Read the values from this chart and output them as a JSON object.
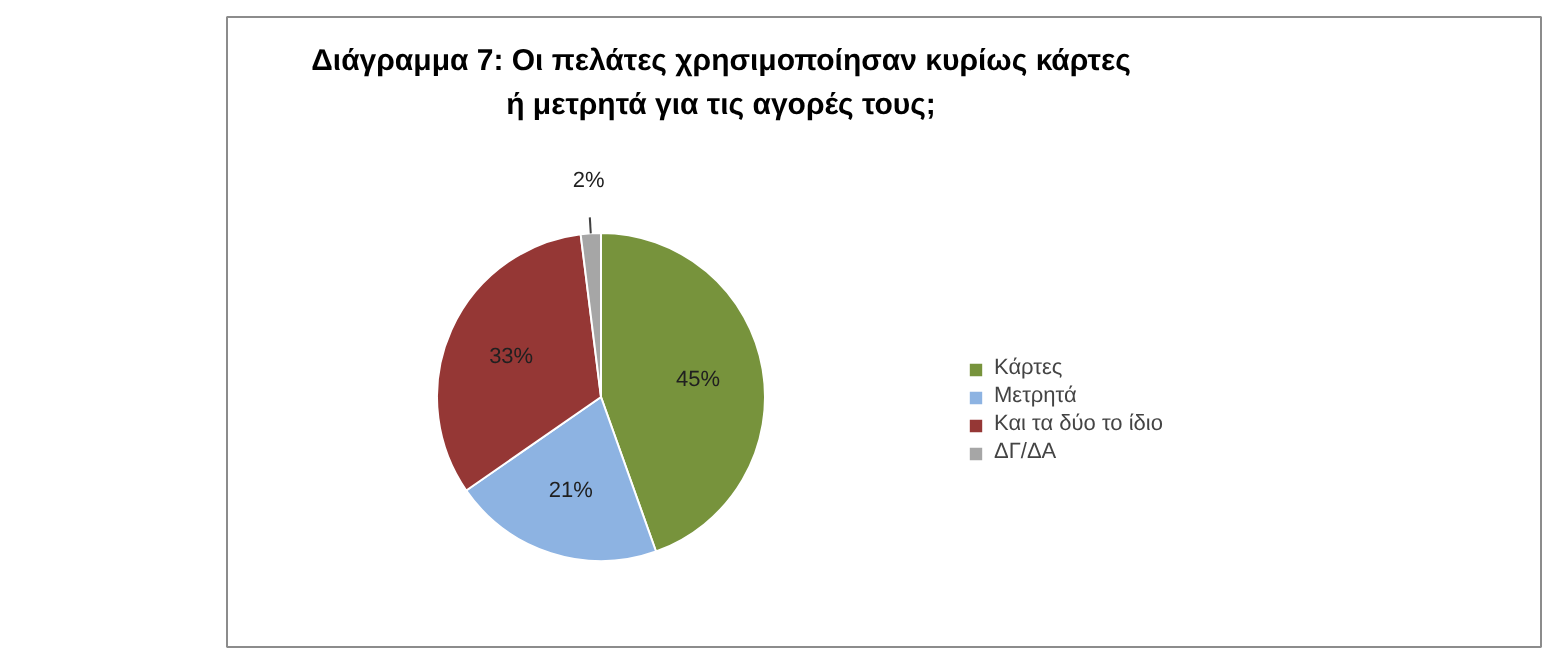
{
  "chart_data": {
    "type": "pie",
    "title": "Διάγραμμα 7: Οι πελάτες χρησιμοποίησαν κυρίως κάρτες ή μετρητά για τις αγορές τους;",
    "categories": [
      "Κάρτες",
      "Μετρητά",
      "Και τα δύο το ίδιο",
      "ΔΓ/ΔΑ"
    ],
    "values": [
      45,
      21,
      33,
      2
    ],
    "colors": [
      "#77933c",
      "#8db3e2",
      "#953735",
      "#a6a6a6"
    ],
    "value_labels": [
      "45%",
      "21%",
      "33%",
      "2%"
    ],
    "legend": "right"
  }
}
